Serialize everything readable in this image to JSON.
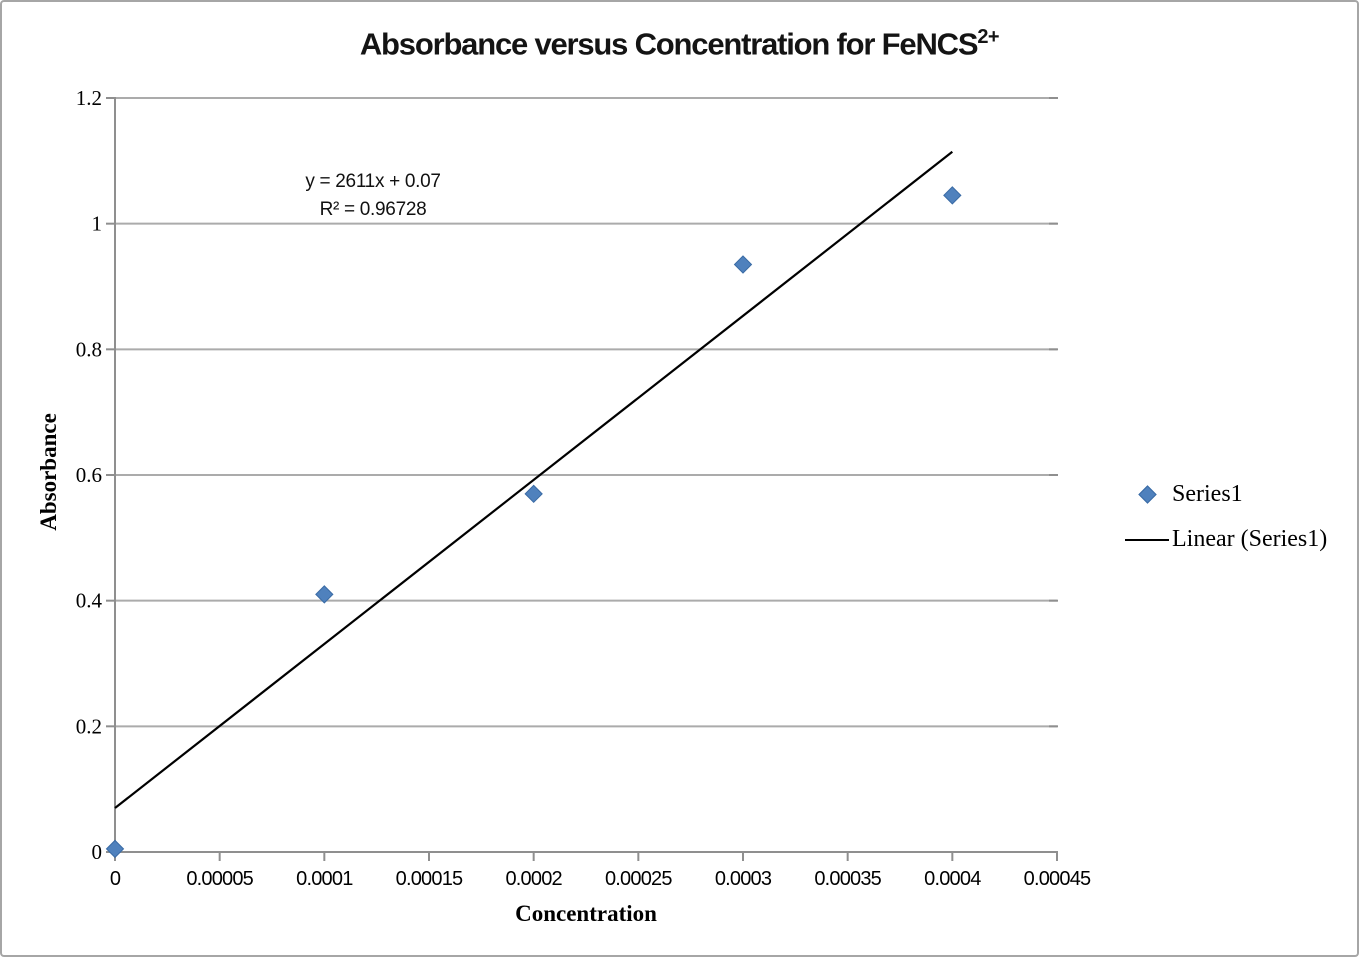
{
  "chart_data": {
    "type": "scatter",
    "title": {
      "main": "Absorbance versus Concentration for FeNCS",
      "superscript": "2+"
    },
    "xlabel": "Concentration",
    "ylabel": "Absorbance",
    "xlim": [
      0,
      0.00045
    ],
    "ylim": [
      0,
      1.2
    ],
    "x_ticks": [
      0,
      5e-05,
      0.0001,
      0.00015,
      0.0002,
      0.00025,
      0.0003,
      0.00035,
      0.0004,
      0.00045
    ],
    "x_tick_labels": [
      "0",
      "0.00005",
      "0.0001",
      "0.00015",
      "0.0002",
      "0.00025",
      "0.0003",
      "0.00035",
      "0.0004",
      "0.00045"
    ],
    "y_ticks": [
      0,
      0.2,
      0.4,
      0.6,
      0.8,
      1.0,
      1.2
    ],
    "y_tick_labels": [
      "0",
      "0.2",
      "0.4",
      "0.6",
      "0.8",
      "1",
      "1.2"
    ],
    "grid": "horizontal",
    "legend_position": "right",
    "series": [
      {
        "name": "Series1",
        "marker": "diamond",
        "points": [
          {
            "x": 0,
            "y": 0.005
          },
          {
            "x": 0.0001,
            "y": 0.41
          },
          {
            "x": 0.0002,
            "y": 0.57
          },
          {
            "x": 0.0003,
            "y": 0.935
          },
          {
            "x": 0.0004,
            "y": 1.045
          }
        ]
      }
    ],
    "trendline": {
      "name": "Linear (Series1)",
      "slope": 2611,
      "intercept": 0.07,
      "x_start": 0,
      "x_end": 0.0004
    },
    "annotation": {
      "line1": "y = 2611x + 0.07",
      "line2": "R² = 0.96728"
    },
    "legend": {
      "items": [
        {
          "label": "Series1",
          "marker": "diamond"
        },
        {
          "label": "Linear (Series1)",
          "marker": "line"
        }
      ]
    },
    "colors": {
      "marker_fill": "#4F81BD",
      "marker_stroke": "#3A6BA5",
      "gridline": "#ABABAB",
      "gridline_endcap": "#8F8F8F",
      "axis": "#8F8F8F",
      "trendline": "#000000"
    }
  }
}
